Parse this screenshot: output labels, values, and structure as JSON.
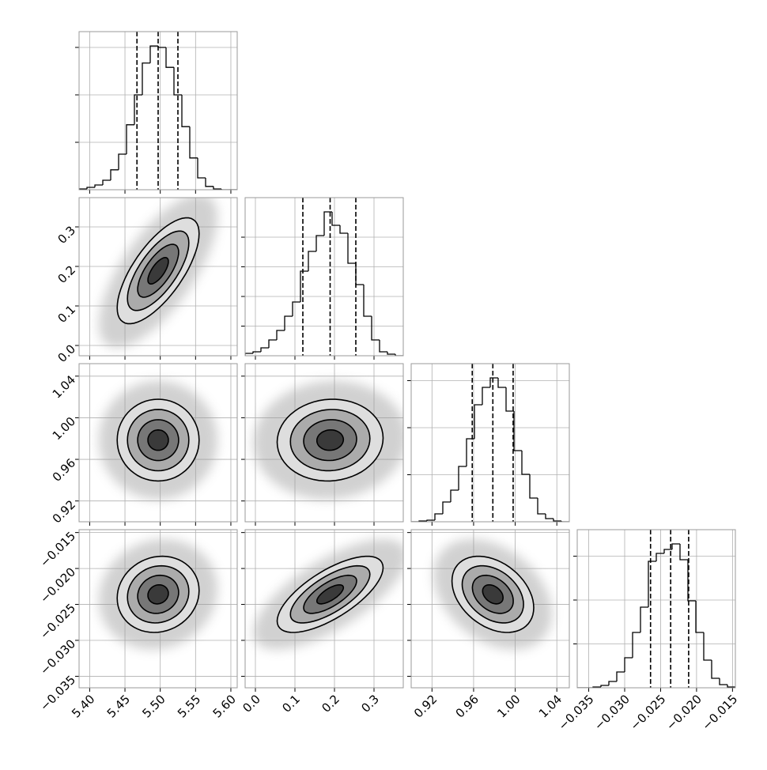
{
  "chart_data": {
    "type": "corner",
    "grid": true,
    "levels": [
      0.5,
      1,
      1.5,
      2
    ],
    "line_color": "#000000",
    "point_color": "#9a9a9a",
    "parameters": [
      {
        "xlim": [
          5.385,
          5.609
        ],
        "ticks": [
          {
            "value": 5.4,
            "label": "5.40"
          },
          5.45,
          {
            "value": 5.5,
            "label": "5.50"
          },
          5.55,
          {
            "value": 5.6,
            "label": "5.60"
          }
        ],
        "bins": [
          5.385,
          5.3962,
          5.4074,
          5.4186,
          5.4298,
          5.441,
          5.4522,
          5.4634,
          5.4746,
          5.4858,
          5.497,
          5.5082,
          5.5194,
          5.5306,
          5.5418,
          5.553,
          5.5642,
          5.5754,
          5.5866,
          5.5978,
          5.609
        ],
        "counts": [
          17,
          50,
          100,
          200,
          420,
          750,
          1370,
          2000,
          2670,
          3030,
          3000,
          2580,
          2000,
          1330,
          670,
          250,
          70,
          17,
          0,
          0
        ],
        "quantiles": [
          5.467,
          5.497,
          5.525
        ],
        "hist_ylim": [
          0,
          3333
        ],
        "hist_yticks": [
          1000,
          2000,
          3000
        ]
      },
      {
        "xlim": [
          -0.026,
          0.374
        ],
        "ticks": [
          {
            "value": 0,
            "label": "0.0"
          },
          0.1,
          0.2,
          0.3
        ],
        "bins": [
          -0.026,
          -0.006,
          0.014,
          0.034,
          0.054,
          0.074,
          0.094,
          0.114,
          0.134,
          0.154,
          0.174,
          0.194,
          0.214,
          0.234,
          0.254,
          0.274,
          0.294,
          0.314,
          0.334,
          0.354,
          0.374
        ],
        "counts": [
          40,
          67,
          133,
          267,
          427,
          667,
          907,
          1427,
          1760,
          2027,
          2427,
          2200,
          2067,
          1560,
          1200,
          667,
          267,
          67,
          27,
          0
        ],
        "quantiles": [
          0.12,
          0.189,
          0.254
        ],
        "hist_ylim": [
          0,
          2667
        ],
        "hist_yticks": [
          500,
          1000,
          1500,
          2000
        ]
      },
      {
        "xlim": [
          0.9,
          1.052
        ],
        "ticks": [
          0.92,
          0.96,
          {
            "value": 1,
            "label": "1.00"
          },
          1.04
        ],
        "bins": [
          0.9,
          0.9076,
          0.9152,
          0.9228,
          0.9304,
          0.938,
          0.9456,
          0.9532,
          0.9608,
          0.9684,
          0.976,
          0.9836,
          0.9912,
          0.9988,
          1.0064,
          1.014,
          1.0216,
          1.0292,
          1.0368,
          1.0444,
          1.052
        ],
        "counts": [
          0,
          17,
          34,
          168,
          420,
          672,
          1176,
          1765,
          2487,
          2857,
          3059,
          2857,
          2353,
          1513,
          1008,
          504,
          168,
          67,
          17,
          0
        ],
        "quantiles": [
          0.9587,
          0.9785,
          0.998
        ],
        "hist_ylim": [
          0,
          3361
        ],
        "hist_yticks": [
          1000,
          2000,
          3000
        ]
      },
      {
        "xlim": [
          -0.0366,
          -0.0146
        ],
        "ticks": [
          {
            "value": -0.035,
            "label": "−0.035"
          },
          {
            "value": -0.03,
            "label": "−0.030"
          },
          {
            "value": -0.025,
            "label": "−0.025"
          },
          {
            "value": -0.02,
            "label": "−0.020"
          },
          {
            "value": -0.015,
            "label": "−0.015"
          }
        ],
        "bins": [
          -0.0366,
          -0.0355,
          -0.0344,
          -0.0333,
          -0.0322,
          -0.0311,
          -0.03,
          -0.0289,
          -0.0278,
          -0.0267,
          -0.0256,
          -0.0245,
          -0.0234,
          -0.0223,
          -0.0212,
          -0.0201,
          -0.019,
          -0.0179,
          -0.0168,
          -0.0157,
          -0.0146
        ],
        "counts": [
          0,
          0,
          18,
          54,
          144,
          360,
          685,
          1261,
          1838,
          2883,
          3063,
          3153,
          3280,
          2919,
          1982,
          1261,
          631,
          216,
          72,
          18
        ],
        "quantiles": [
          -0.0264,
          -0.0236,
          -0.0211
        ],
        "hist_ylim": [
          0,
          3604
        ],
        "hist_yticks": [
          1000,
          2000,
          3000
        ]
      }
    ],
    "correlations": [
      [
        0.7
      ],
      [
        0.0,
        0.05
      ],
      [
        0.1,
        0.7,
        -0.35
      ]
    ]
  }
}
